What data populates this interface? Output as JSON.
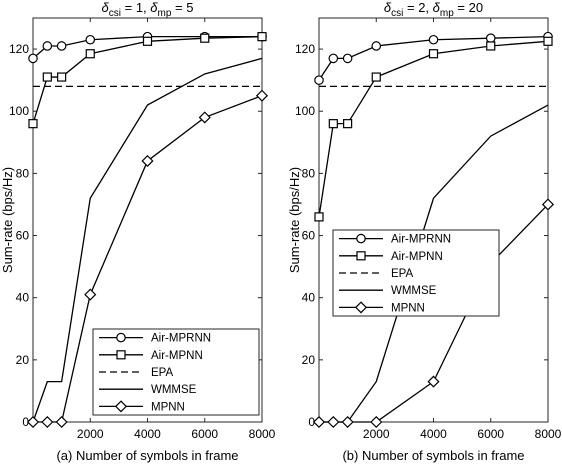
{
  "chart_data": [
    {
      "type": "line",
      "title": "δcsi = 1, δmp = 5",
      "title_parts": {
        "sym1": "δ",
        "sub1": "csi",
        "mid": " = 1, ",
        "sym2": "δ",
        "sub2": "mp",
        "end": " = 5"
      },
      "xlabel": "(a) Number of symbols in frame",
      "ylabel": "Sum-rate (bps/Hz)",
      "xlim": [
        0,
        8000
      ],
      "ylim": [
        0,
        130
      ],
      "xticks": [
        2000,
        4000,
        6000,
        8000
      ],
      "yticks": [
        0,
        20,
        40,
        60,
        80,
        100,
        120
      ],
      "grid": false,
      "legend_position": "bottom-right",
      "series": [
        {
          "name": "Air-MPRNN",
          "style": "solid",
          "marker": "circle",
          "x": [
            0,
            500,
            1000,
            2000,
            4000,
            6000,
            8000
          ],
          "y": [
            117,
            121,
            121,
            123,
            124,
            124,
            124
          ]
        },
        {
          "name": "Air-MPNN",
          "style": "solid",
          "marker": "square",
          "x": [
            0,
            500,
            1000,
            2000,
            4000,
            6000,
            8000
          ],
          "y": [
            96,
            111,
            111,
            118.5,
            122.5,
            123.5,
            124
          ]
        },
        {
          "name": "EPA",
          "style": "dashed",
          "marker": "none",
          "x": [
            0,
            8000
          ],
          "y": [
            108,
            108
          ]
        },
        {
          "name": "WMMSE",
          "style": "solid",
          "marker": "none",
          "x": [
            0,
            500,
            1000,
            2000,
            4000,
            6000,
            8000
          ],
          "y": [
            0,
            13,
            13,
            72,
            102,
            112,
            117
          ]
        },
        {
          "name": "MPNN",
          "style": "solid",
          "marker": "diamond",
          "x": [
            0,
            500,
            1000,
            2000,
            4000,
            6000,
            8000
          ],
          "y": [
            0,
            0,
            0,
            41,
            84,
            98,
            105
          ]
        }
      ]
    },
    {
      "type": "line",
      "title": "δcsi = 2, δmp = 20",
      "title_parts": {
        "sym1": "δ",
        "sub1": "csi",
        "mid": " = 2, ",
        "sym2": "δ",
        "sub2": "mp",
        "end": " = 20"
      },
      "xlabel": "(b) Number of symbols in frame",
      "ylabel": "Sum-rate (bps/Hz)",
      "xlim": [
        0,
        8000
      ],
      "ylim": [
        0,
        130
      ],
      "xticks": [
        2000,
        4000,
        6000,
        8000
      ],
      "yticks": [
        0,
        20,
        40,
        60,
        80,
        100,
        120
      ],
      "grid": false,
      "legend_position": "top-left",
      "series": [
        {
          "name": "Air-MPRNN",
          "style": "solid",
          "marker": "circle",
          "x": [
            0,
            500,
            1000,
            2000,
            4000,
            6000,
            8000
          ],
          "y": [
            110,
            117,
            117,
            121,
            123,
            123.5,
            124
          ]
        },
        {
          "name": "Air-MPNN",
          "style": "solid",
          "marker": "square",
          "x": [
            0,
            500,
            1000,
            2000,
            4000,
            6000,
            8000
          ],
          "y": [
            66,
            96,
            96,
            111,
            118.5,
            121,
            122.5
          ]
        },
        {
          "name": "EPA",
          "style": "dashed",
          "marker": "none",
          "x": [
            0,
            8000
          ],
          "y": [
            108,
            108
          ]
        },
        {
          "name": "WMMSE",
          "style": "solid",
          "marker": "none",
          "x": [
            0,
            500,
            1000,
            2000,
            4000,
            6000,
            8000
          ],
          "y": [
            0,
            0,
            0,
            13,
            72,
            92,
            102
          ]
        },
        {
          "name": "MPNN",
          "style": "solid",
          "marker": "diamond",
          "x": [
            0,
            500,
            1000,
            2000,
            4000,
            6000,
            8000
          ],
          "y": [
            0,
            0,
            0,
            0,
            13,
            51,
            70
          ]
        }
      ]
    }
  ]
}
